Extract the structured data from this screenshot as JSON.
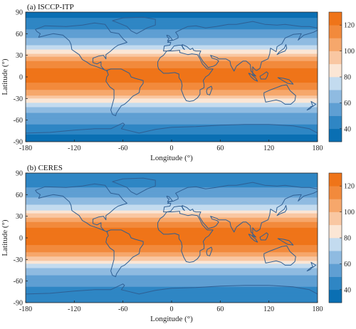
{
  "colors": {
    "palette": [
      "#0a6fb3",
      "#2f86c4",
      "#5f9fd3",
      "#8fbbe1",
      "#c3dbef",
      "#fbe6d5",
      "#f9c7a2",
      "#f6a76b",
      "#f28a3c",
      "#ef7419"
    ],
    "coastline": "#2f5f93",
    "frame": "#222222"
  },
  "chart_data": [
    {
      "type": "heatmap",
      "title": "(a) ISCCP-ITP",
      "xlabel": "Longitude (°)",
      "ylabel": "Latitude (°)",
      "xlim": [
        -180,
        180
      ],
      "ylim": [
        -90,
        90
      ],
      "xticks": [
        "-180",
        "-120",
        "-60",
        "0",
        "60",
        "120",
        "180"
      ],
      "yticks": [
        "90",
        "60",
        "30",
        "0",
        "-30",
        "-60",
        "-90"
      ],
      "colorbar": {
        "range": [
          30,
          130
        ],
        "levels": [
          30,
          40,
          50,
          60,
          70,
          80,
          90,
          100,
          110,
          120,
          130
        ],
        "ticks": [
          "120",
          "100",
          "80",
          "60",
          "40"
        ]
      },
      "latitudinal_profile": [
        {
          "lat": 90,
          "value": 38
        },
        {
          "lat": 75,
          "value": 42
        },
        {
          "lat": 60,
          "value": 55
        },
        {
          "lat": 45,
          "value": 68
        },
        {
          "lat": 35,
          "value": 85
        },
        {
          "lat": 25,
          "value": 105
        },
        {
          "lat": 15,
          "value": 118
        },
        {
          "lat": 5,
          "value": 123
        },
        {
          "lat": -5,
          "value": 122
        },
        {
          "lat": -15,
          "value": 115
        },
        {
          "lat": -25,
          "value": 100
        },
        {
          "lat": -35,
          "value": 82
        },
        {
          "lat": -45,
          "value": 65
        },
        {
          "lat": -55,
          "value": 55
        },
        {
          "lat": -65,
          "value": 50
        },
        {
          "lat": -75,
          "value": 42
        },
        {
          "lat": -90,
          "value": 35
        }
      ]
    },
    {
      "type": "heatmap",
      "title": "(b) CERES",
      "xlabel": "Longitude (°)",
      "ylabel": "Latitude (°)",
      "xlim": [
        -180,
        180
      ],
      "ylim": [
        -90,
        90
      ],
      "xticks": [
        "-180",
        "-120",
        "-60",
        "0",
        "60",
        "120",
        "180"
      ],
      "yticks": [
        "90",
        "60",
        "30",
        "0",
        "-30",
        "-60",
        "-90"
      ],
      "colorbar": {
        "range": [
          30,
          130
        ],
        "levels": [
          30,
          40,
          50,
          60,
          70,
          80,
          90,
          100,
          110,
          120,
          130
        ],
        "ticks": [
          "120",
          "100",
          "80",
          "60",
          "40"
        ]
      },
      "latitudinal_profile": [
        {
          "lat": 90,
          "value": 40
        },
        {
          "lat": 75,
          "value": 46
        },
        {
          "lat": 60,
          "value": 56
        },
        {
          "lat": 45,
          "value": 70
        },
        {
          "lat": 35,
          "value": 86
        },
        {
          "lat": 25,
          "value": 106
        },
        {
          "lat": 15,
          "value": 119
        },
        {
          "lat": 5,
          "value": 124
        },
        {
          "lat": -5,
          "value": 123
        },
        {
          "lat": -15,
          "value": 116
        },
        {
          "lat": -25,
          "value": 101
        },
        {
          "lat": -35,
          "value": 83
        },
        {
          "lat": -45,
          "value": 66
        },
        {
          "lat": -55,
          "value": 56
        },
        {
          "lat": -65,
          "value": 52
        },
        {
          "lat": -75,
          "value": 45
        },
        {
          "lat": -90,
          "value": 40
        }
      ]
    }
  ]
}
